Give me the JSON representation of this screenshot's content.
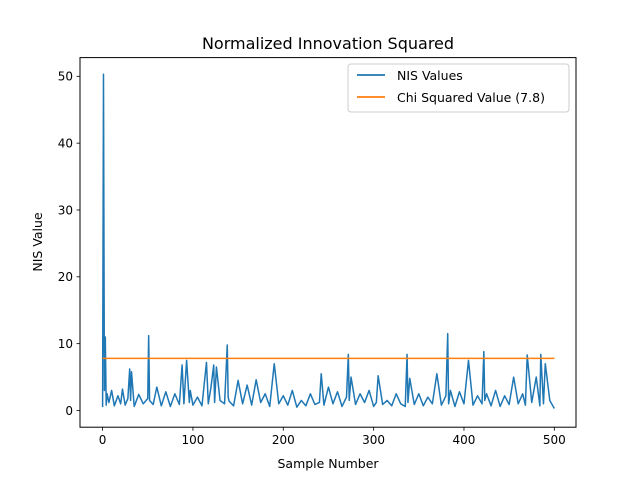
{
  "chart_data": {
    "type": "line",
    "title": "Normalized Innovation Squared",
    "xlabel": "Sample Number",
    "ylabel": "NIS Value",
    "xlim": [
      -25,
      524
    ],
    "ylim": [
      -2.5,
      52.8
    ],
    "xticks": [
      0,
      100,
      200,
      300,
      400,
      500
    ],
    "yticks": [
      0,
      10,
      20,
      30,
      40,
      50
    ],
    "grid": false,
    "legend_position": "top-right",
    "series": [
      {
        "name": "NIS Values",
        "color": "#1f77b4",
        "x": [
          0,
          1,
          2,
          3,
          4,
          5,
          7,
          10,
          13,
          17,
          20,
          22,
          25,
          28,
          30,
          31,
          32,
          35,
          40,
          45,
          50,
          51,
          52,
          56,
          60,
          65,
          70,
          75,
          80,
          85,
          88,
          90,
          93,
          96,
          97,
          100,
          105,
          110,
          115,
          117,
          120,
          123,
          124,
          126,
          130,
          135,
          138,
          139,
          140,
          145,
          150,
          155,
          160,
          165,
          170,
          175,
          180,
          185,
          190,
          195,
          200,
          205,
          210,
          215,
          220,
          225,
          230,
          235,
          240,
          242,
          245,
          250,
          255,
          260,
          265,
          270,
          272,
          273,
          275,
          280,
          285,
          290,
          295,
          300,
          303,
          305,
          310,
          315,
          320,
          325,
          330,
          335,
          337,
          338,
          340,
          345,
          350,
          355,
          360,
          365,
          370,
          375,
          380,
          382,
          383,
          385,
          390,
          395,
          400,
          405,
          408,
          410,
          415,
          420,
          422,
          423,
          425,
          430,
          435,
          440,
          445,
          450,
          455,
          460,
          465,
          468,
          470,
          475,
          480,
          484,
          485,
          488,
          490,
          495,
          500
        ],
        "values": [
          0.5,
          50.3,
          3.0,
          11.0,
          0.8,
          2.5,
          1.2,
          3.0,
          0.7,
          2.2,
          1.0,
          3.2,
          0.8,
          1.8,
          6.2,
          1.5,
          5.8,
          0.6,
          2.4,
          1.0,
          1.8,
          11.2,
          1.5,
          0.9,
          3.5,
          0.7,
          2.8,
          0.6,
          2.5,
          0.9,
          6.8,
          1.0,
          7.5,
          1.2,
          3.0,
          0.8,
          2.0,
          0.7,
          7.2,
          1.0,
          3.5,
          6.8,
          1.2,
          6.5,
          1.5,
          1.0,
          9.8,
          2.0,
          1.4,
          0.7,
          4.5,
          1.0,
          3.8,
          0.8,
          4.6,
          1.2,
          2.5,
          0.6,
          7.0,
          1.0,
          2.2,
          0.8,
          3.0,
          0.5,
          1.5,
          0.7,
          2.5,
          0.9,
          1.2,
          5.5,
          0.8,
          3.5,
          1.0,
          2.8,
          0.6,
          2.0,
          8.4,
          1.5,
          5.0,
          0.9,
          2.5,
          1.2,
          3.0,
          0.6,
          1.2,
          5.2,
          0.9,
          1.5,
          0.7,
          2.5,
          1.0,
          0.6,
          8.4,
          1.2,
          4.8,
          0.9,
          2.5,
          0.7,
          2.0,
          1.0,
          5.5,
          0.8,
          2.2,
          11.5,
          1.0,
          3.0,
          0.6,
          2.8,
          1.0,
          7.5,
          3.5,
          0.8,
          2.2,
          1.0,
          8.8,
          1.5,
          2.5,
          0.7,
          3.0,
          0.6,
          2.2,
          0.9,
          5.0,
          1.0,
          2.5,
          0.8,
          8.3,
          1.2,
          5.0,
          0.7,
          8.4,
          1.0,
          7.0,
          1.5,
          0.3
        ]
      },
      {
        "name": "Chi Squared Value (7.8)",
        "color": "#ff7f0e",
        "x": [
          0,
          500
        ],
        "values": [
          7.8,
          7.8
        ]
      }
    ]
  }
}
